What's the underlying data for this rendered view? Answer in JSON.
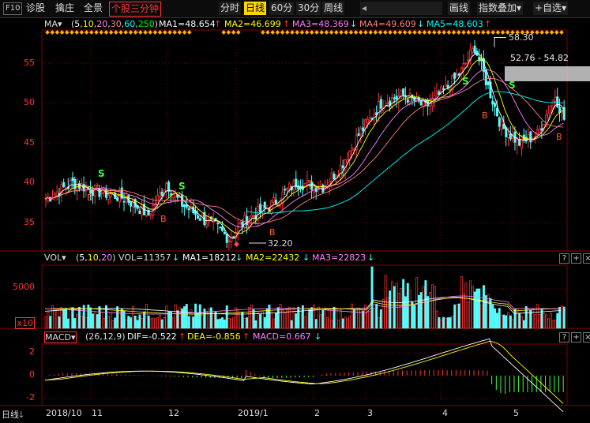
{
  "toolbar": {
    "f10": "F10",
    "diagnose": "诊股",
    "shrink": "擒庄",
    "fullview": "全景",
    "three_min": "个股三分钟",
    "periods": [
      "分时",
      "日线",
      "60分",
      "30分",
      "周线"
    ],
    "active_period": "日线",
    "draw": "画线",
    "index_overlay": "指数叠加",
    "add_watch": "+自选"
  },
  "ma_row": {
    "name": "MA",
    "params": "(5,10,20,30,60,250)",
    "ma1": "MA1=48.654",
    "ma2": "MA2=46.699",
    "ma3": "MA3=48.369",
    "ma4": "MA4=49.609",
    "ma5": "MA5=48.603"
  },
  "price_axis": [
    "55",
    "50",
    "45",
    "40",
    "35"
  ],
  "annotations": {
    "high": "58.30",
    "low": "32.20",
    "range": "52.76 - 54.82",
    "buy": "B",
    "sell": "S"
  },
  "vol_row": {
    "name": "VOL",
    "params": "(5,10,20)",
    "vol": "VOL=11357",
    "ma1": "MA1=18212",
    "ma2": "MA2=22432",
    "ma3": "MA3=22823"
  },
  "vol_axis": {
    "top": "5000",
    "unit": "x10"
  },
  "macd_row": {
    "name": "MACD",
    "params": "(26,12,9)",
    "dif": "DIF=-0.522",
    "dea": "DEA=-0.856",
    "macd": "MACD=0.667"
  },
  "macd_axis": [
    "2",
    "0",
    "-2"
  ],
  "pane_icons": [
    "?",
    "+",
    "×"
  ],
  "bottom": {
    "period_label": "日线",
    "x_labels": [
      "2018/10",
      "11",
      "12",
      "2019/1",
      "2",
      "3",
      "4",
      "5"
    ]
  },
  "colors": {
    "up": "#ff3232",
    "down": "#54fcfc",
    "ma5": "#ffffff",
    "ma10": "#ffff00",
    "ma20": "#ff80ff",
    "ma30": "#ff8080",
    "ma60": "#00ffff",
    "grid": "#7a0000"
  }
}
